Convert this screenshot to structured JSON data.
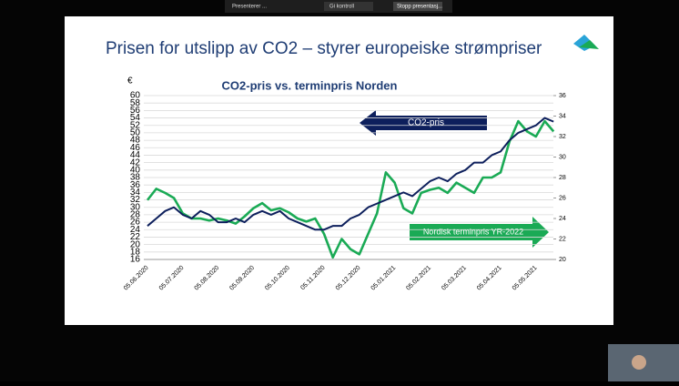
{
  "toolbar": {
    "presenting": "Presenterer ...",
    "control": "Gi kontroll",
    "stop": "Stopp presentasj..."
  },
  "slide": {
    "title": "Prisen for utslipp av CO2 – styrer europeiske strømpriser"
  },
  "chart_data": {
    "type": "line",
    "title": "CO2-pris vs. terminpris Norden",
    "y_label": "€",
    "categories": [
      "05.06.2020",
      null,
      null,
      null,
      "05.07.2020",
      null,
      null,
      null,
      "05.08.2020",
      null,
      null,
      null,
      "05.09.2020",
      null,
      null,
      null,
      "05.10.2020",
      null,
      null,
      null,
      "05.11.2020",
      null,
      null,
      null,
      "05.12.2020",
      null,
      null,
      null,
      "05.01.2021",
      null,
      null,
      null,
      "05.02.2021",
      null,
      null,
      null,
      "05.03.2021",
      null,
      null,
      null,
      "05.04.2021",
      null,
      null,
      null,
      "05.05.2021",
      null,
      null
    ],
    "series": [
      {
        "name": "CO2-pris",
        "color": "#0d1f5c",
        "values": [
          25,
          27,
          29,
          30,
          28,
          27,
          29,
          28,
          26,
          26,
          27,
          26,
          28,
          29,
          28,
          29,
          27,
          26,
          25,
          24,
          24,
          25,
          25,
          27,
          28,
          30,
          31,
          32,
          33,
          34,
          33,
          35,
          37,
          38,
          37,
          39,
          40,
          42,
          42,
          44,
          45,
          48,
          50,
          51,
          52,
          54,
          53
        ]
      },
      {
        "name": "Nordisk terminpris YR-2022",
        "color": "#1aaa55",
        "axis": "y2",
        "values": [
          25.8,
          26.9,
          26.5,
          26.0,
          24.5,
          24.0,
          24.0,
          23.8,
          24.0,
          23.8,
          23.5,
          24.2,
          25.0,
          25.5,
          24.8,
          25.0,
          24.6,
          24.0,
          23.7,
          24.0,
          22.5,
          20.2,
          22.0,
          21.0,
          20.5,
          22.5,
          24.5,
          28.5,
          27.5,
          25.0,
          24.5,
          26.5,
          26.8,
          27.0,
          26.5,
          27.5,
          27.0,
          26.5,
          28.0,
          28.0,
          28.5,
          31.5,
          33.5,
          32.5,
          32.0,
          33.5,
          32.5
        ]
      }
    ],
    "ylim": [
      16,
      60
    ],
    "yticks": [
      16,
      18,
      20,
      22,
      24,
      26,
      28,
      30,
      32,
      34,
      36,
      38,
      40,
      42,
      44,
      46,
      48,
      50,
      52,
      54,
      56,
      58,
      60
    ],
    "y2lim": [
      20,
      36
    ],
    "y2ticks": [
      20,
      22,
      24,
      26,
      28,
      30,
      32,
      34,
      36
    ],
    "grid": true
  }
}
